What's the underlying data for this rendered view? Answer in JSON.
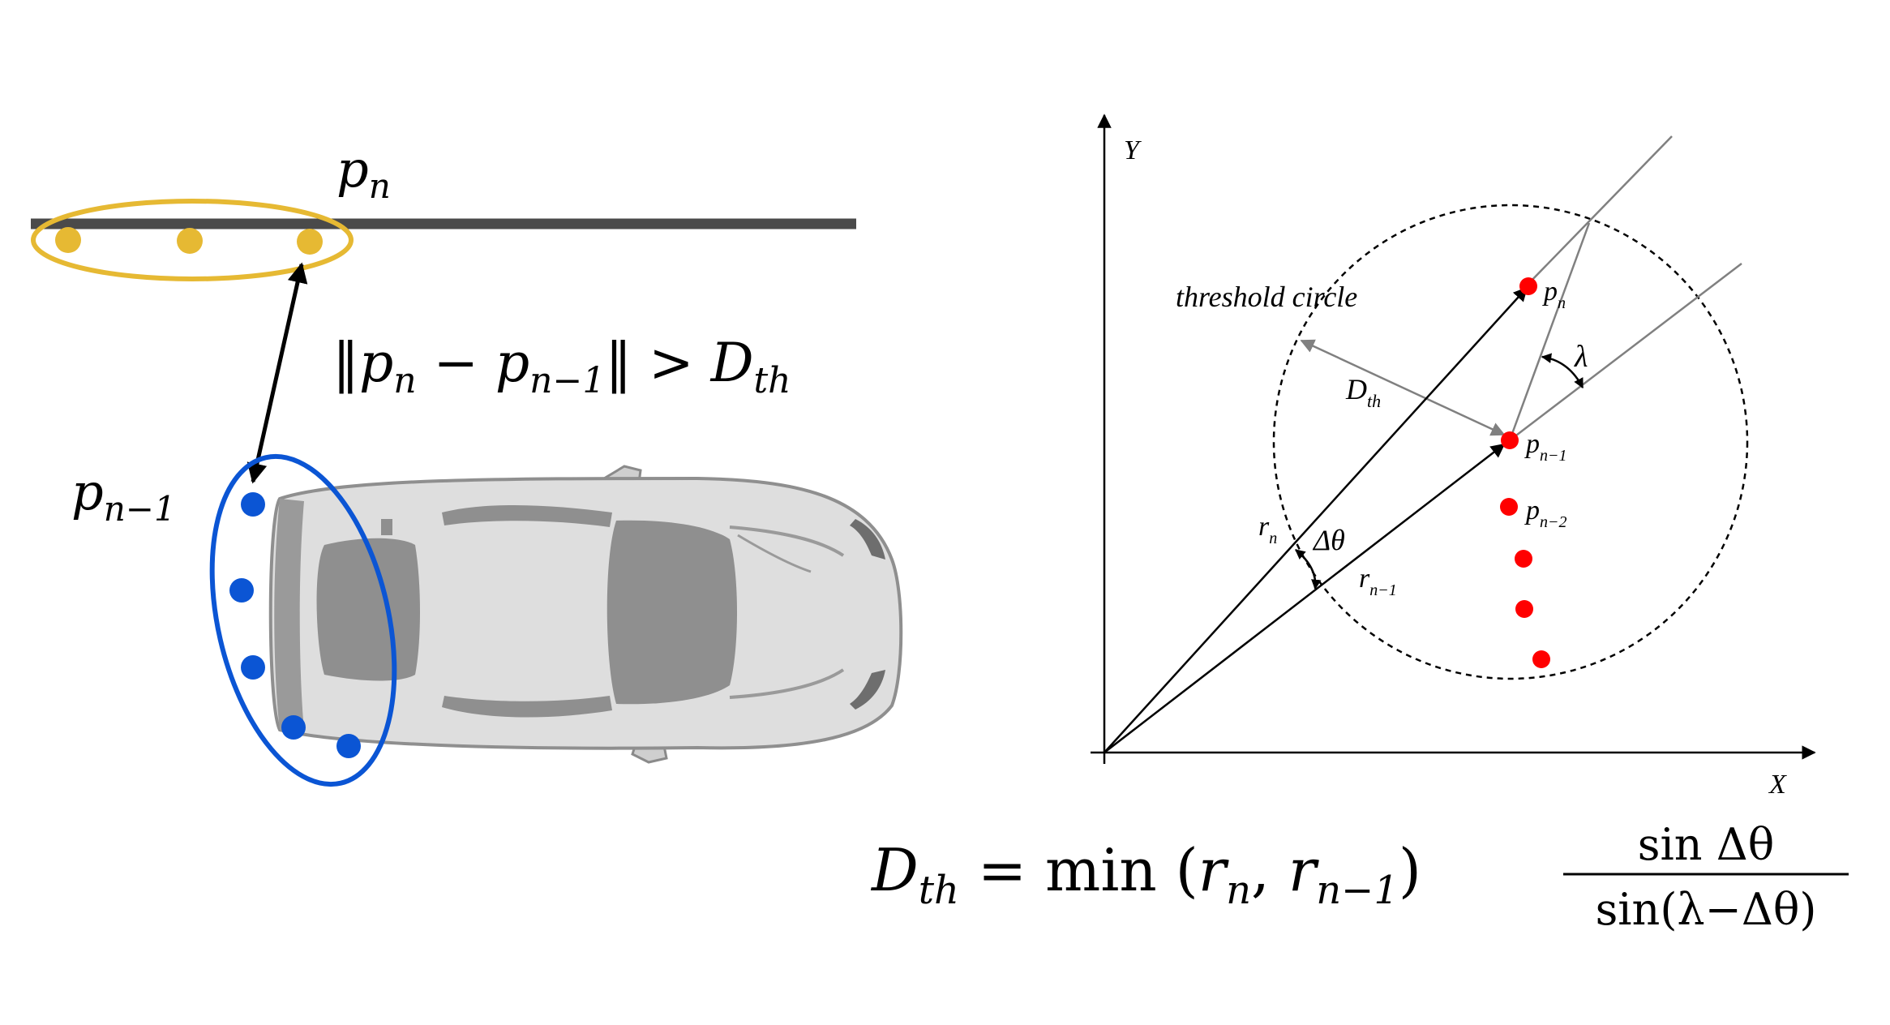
{
  "left_panel": {
    "p_n_label": {
      "base": "p",
      "sub": "n"
    },
    "p_n1_label": {
      "base": "p",
      "sub": "n−1"
    },
    "condition": {
      "open": "‖",
      "p1": "p",
      "s1": "n",
      "minus": " − ",
      "p2": "p",
      "s2": "n−1",
      "close": "‖",
      "gt": " > ",
      "d": "D",
      "dsub": "th"
    },
    "colors": {
      "road": "#4a4a4a",
      "yellow": "#e6b933",
      "blue": "#0b55d4",
      "car_body": "#dedede",
      "car_dark": "#8f8f8f"
    }
  },
  "right_panel": {
    "axis_y": "Y",
    "axis_x": "X",
    "threshold_label": "threshold circle",
    "d_th": {
      "base": "D",
      "sub": "th"
    },
    "p_n": {
      "base": "p",
      "sub": "n"
    },
    "p_n1": {
      "base": "p",
      "sub": "n−1"
    },
    "p_n2": {
      "base": "p",
      "sub": "n−2"
    },
    "r_n": {
      "base": "r",
      "sub": "n"
    },
    "r_n1": {
      "base": "r",
      "sub": "n−1"
    },
    "delta_theta": "Δθ",
    "lambda": "λ",
    "colors": {
      "points": "#ff0000",
      "gray_lines": "#808080"
    }
  },
  "formula": {
    "lhs": "D",
    "lhs_sub": "th",
    "eq": " = ",
    "min": "min",
    "lpar": " (",
    "r1": "r",
    "r1_sub": "n",
    "comma": ", ",
    "r2": "r",
    "r2_sub": "n−1",
    "rpar": ")",
    "num": "sin Δθ",
    "den": "sin(λ−Δθ)"
  }
}
